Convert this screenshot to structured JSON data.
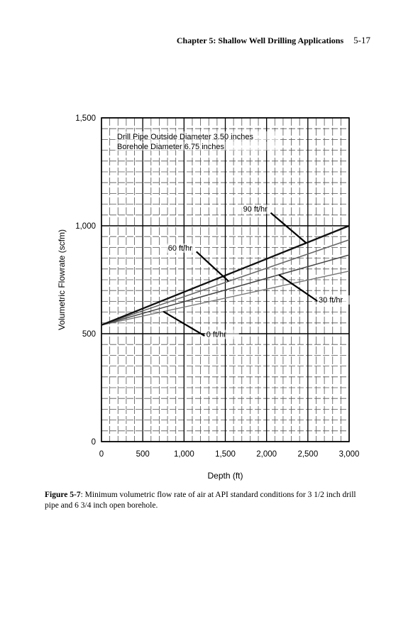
{
  "header": {
    "chapter_title": "Chapter 5: Shallow Well Drilling Applications",
    "page_number": "5-17"
  },
  "chart_data": {
    "type": "line",
    "xlabel": "Depth (ft)",
    "ylabel": "Volumetric Flowrate (scfm)",
    "xlim": [
      0,
      3000
    ],
    "ylim": [
      0,
      1500
    ],
    "xticks": [
      0,
      500,
      1000,
      1500,
      2000,
      2500,
      3000
    ],
    "xtick_labels": [
      "0",
      "500",
      "1,000",
      "1,500",
      "2,000",
      "2,500",
      "3,000"
    ],
    "yticks": [
      0,
      500,
      1000,
      1500
    ],
    "ytick_labels": [
      "0",
      "500",
      "1,000",
      "1,500"
    ],
    "grid": true,
    "notes": [
      "Drill Pipe Outside Diameter 3.50 inches",
      "Borehole Diameter 6.75 inches"
    ],
    "series": [
      {
        "name": "0 ft/hr",
        "x": [
          0,
          3000
        ],
        "y": [
          540,
          790
        ],
        "color": "#777777"
      },
      {
        "name": "30 ft/hr",
        "x": [
          0,
          3000
        ],
        "y": [
          540,
          865
        ],
        "color": "#444444"
      },
      {
        "name": "60 ft/hr",
        "x": [
          0,
          3000
        ],
        "y": [
          540,
          935
        ],
        "color": "#666666"
      },
      {
        "name": "90 ft/hr",
        "x": [
          0,
          3000
        ],
        "y": [
          540,
          1000
        ],
        "color": "#111111"
      }
    ]
  },
  "caption": {
    "label": "Figure 5-7",
    "text": ": Minimum volumetric flow rate of air at API standard conditions for 3 1/2 inch drill pipe and 6 3/4 inch open borehole."
  }
}
